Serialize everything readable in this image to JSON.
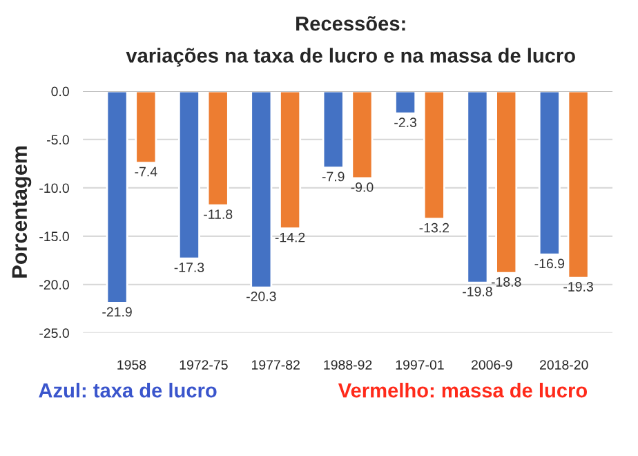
{
  "chart_data": {
    "type": "bar",
    "title": "Recessões:",
    "subtitle": "variações na taxa de lucro e na massa de lucro",
    "ylabel": "Porcentagem",
    "categories": [
      "1958",
      "1972-75",
      "1977-82",
      "1988-92",
      "1997-01",
      "2006-9",
      "2018-20"
    ],
    "series": [
      {
        "color": "#4472c4",
        "values": [
          -21.9,
          -17.3,
          -20.3,
          -7.9,
          -2.3,
          -19.8,
          -16.9
        ],
        "value_labels": [
          "-21.9",
          "-17.3",
          "-20.3",
          "-7.9",
          "-2.3",
          "-19.8",
          "-16.9"
        ]
      },
      {
        "color": "#ed7d31",
        "values": [
          -7.4,
          -11.8,
          -14.2,
          -9.0,
          -13.2,
          -18.8,
          -19.3
        ],
        "value_labels": [
          "-7.4",
          "-11.8",
          "-14.2",
          "-9.0",
          "-13.2",
          "-18.8",
          "-19.3"
        ]
      }
    ],
    "ylim": [
      -25,
      0
    ],
    "yticks": [
      {
        "value": -25,
        "label": "-25.0"
      },
      {
        "value": -20,
        "label": "-20.0"
      },
      {
        "value": -15,
        "label": "-15.0"
      },
      {
        "value": -10,
        "label": "-10.0"
      },
      {
        "value": -5,
        "label": "-5.0"
      },
      {
        "value": 0,
        "label": "0.0"
      }
    ],
    "grid": "y",
    "annotations": [
      "Azul: taxa de lucro",
      "Vermelho: massa de lucro"
    ]
  }
}
